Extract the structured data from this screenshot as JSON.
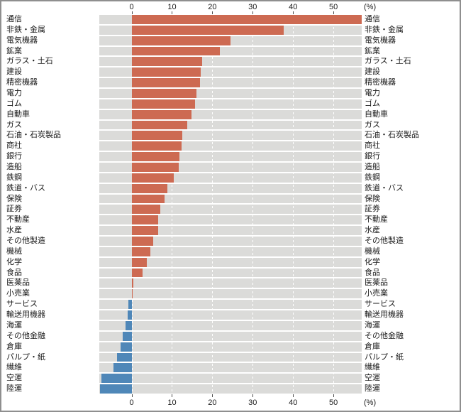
{
  "chart_data": {
    "type": "bar",
    "orientation": "horizontal",
    "title": "",
    "unit_label": "(%)",
    "x_ticks": [
      0,
      10,
      20,
      30,
      40,
      50
    ],
    "xlim": [
      -8,
      57
    ],
    "grid": "white dashed vertical lines on gray bands, axis labels top and bottom",
    "legend_position": "none",
    "positive_color": "#cd6a52",
    "negative_color": "#4f87b8",
    "band_color": "#dbdbd9",
    "categories": [
      "通信",
      "非鉄・金属",
      "電気機器",
      "鉱業",
      "ガラス・土石",
      "建設",
      "精密機器",
      "電力",
      "ゴム",
      "自動車",
      "ガス",
      "石油・石炭製品",
      "商社",
      "銀行",
      "造船",
      "鉄鋼",
      "鉄道・バス",
      "保険",
      "証券",
      "不動産",
      "水産",
      "その他製造",
      "機械",
      "化学",
      "食品",
      "医薬品",
      "小売業",
      "サービス",
      "輸送用機器",
      "海運",
      "その他金融",
      "倉庫",
      "パルプ・紙",
      "繊維",
      "空運",
      "陸運"
    ],
    "values": [
      57.0,
      37.6,
      24.5,
      21.8,
      17.4,
      17.2,
      17.0,
      16.0,
      15.7,
      14.9,
      13.8,
      12.5,
      12.4,
      11.9,
      11.6,
      10.5,
      8.9,
      8.2,
      7.1,
      6.6,
      6.5,
      5.4,
      4.7,
      3.7,
      2.8,
      0.4,
      0.2,
      -0.8,
      -0.9,
      -1.5,
      -2.2,
      -2.7,
      -3.6,
      -4.5,
      -7.4,
      -7.8
    ],
    "category_labels_mirrored_right": true
  },
  "axes": {
    "top_unit": "(%)",
    "bottom_unit": "(%)"
  }
}
